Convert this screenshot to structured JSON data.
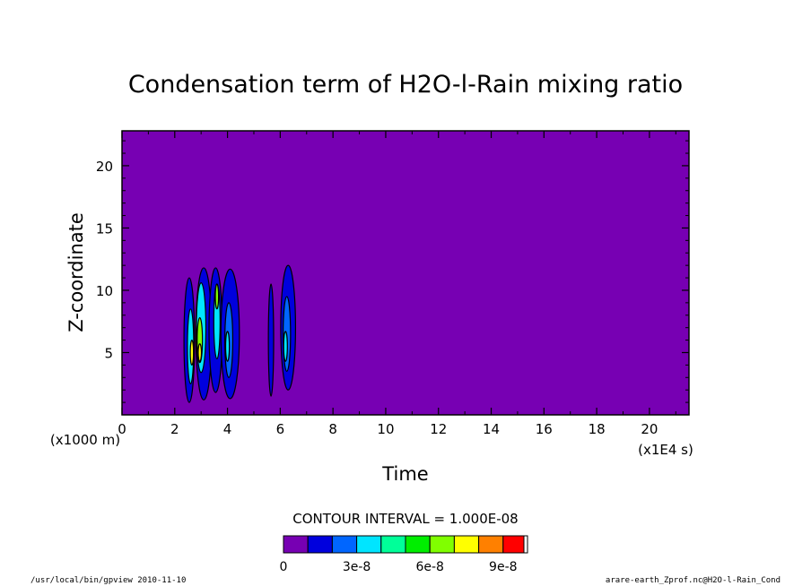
{
  "chart_data": {
    "type": "heatmap",
    "title": "Condensation term of H2O-l-Rain mixing ratio",
    "xlabel": "Time",
    "ylabel": "Z-coordinate",
    "x_unit": "(x1E4 s)",
    "y_unit": "(x1000 m)",
    "xlim": [
      0,
      21.5
    ],
    "ylim": [
      0,
      22.8
    ],
    "xticks": [
      0,
      2,
      4,
      6,
      8,
      10,
      12,
      14,
      16,
      18,
      20
    ],
    "yticks": [
      5,
      10,
      15,
      20
    ],
    "background_color": "#7700b3",
    "contour_interval_label": "CONTOUR INTERVAL = 1.000E-08",
    "colorbar": {
      "levels": [
        0,
        1e-08,
        2e-08,
        3e-08,
        4e-08,
        5e-08,
        6e-08,
        7e-08,
        8e-08,
        9e-08,
        1e-07
      ],
      "colors": [
        "#7700b3",
        "#0000dd",
        "#0066ff",
        "#00e5ff",
        "#00ff99",
        "#00ee00",
        "#80ff00",
        "#ffff00",
        "#ff8000",
        "#ff0000"
      ],
      "tick_labels": [
        {
          "value": 0,
          "label": "0"
        },
        {
          "value": 3e-08,
          "label": "3e-8"
        },
        {
          "value": 6e-08,
          "label": "6e-8"
        },
        {
          "value": 9e-08,
          "label": "9e-8"
        }
      ]
    },
    "regions": [
      {
        "x": 2.55,
        "y": 6.0,
        "rx": 0.2,
        "ry": 5.0,
        "level": 1
      },
      {
        "x": 2.6,
        "y": 5.5,
        "rx": 0.12,
        "ry": 3.0,
        "level": 3
      },
      {
        "x": 2.65,
        "y": 5.0,
        "rx": 0.06,
        "ry": 1.0,
        "level": 7
      },
      {
        "x": 3.1,
        "y": 6.5,
        "rx": 0.3,
        "ry": 5.3,
        "level": 1
      },
      {
        "x": 3.0,
        "y": 7.0,
        "rx": 0.18,
        "ry": 3.6,
        "level": 3
      },
      {
        "x": 2.95,
        "y": 6.0,
        "rx": 0.1,
        "ry": 1.8,
        "level": 6
      },
      {
        "x": 2.95,
        "y": 5.0,
        "rx": 0.06,
        "ry": 0.7,
        "level": 7
      },
      {
        "x": 3.55,
        "y": 6.8,
        "rx": 0.25,
        "ry": 5.0,
        "level": 1
      },
      {
        "x": 3.6,
        "y": 7.5,
        "rx": 0.12,
        "ry": 3.0,
        "level": 3
      },
      {
        "x": 3.6,
        "y": 9.5,
        "rx": 0.06,
        "ry": 1.0,
        "level": 6
      },
      {
        "x": 4.1,
        "y": 6.5,
        "rx": 0.35,
        "ry": 5.2,
        "level": 1
      },
      {
        "x": 4.05,
        "y": 6.0,
        "rx": 0.15,
        "ry": 3.0,
        "level": 2
      },
      {
        "x": 4.0,
        "y": 5.5,
        "rx": 0.07,
        "ry": 1.2,
        "level": 3
      },
      {
        "x": 5.65,
        "y": 6.0,
        "rx": 0.1,
        "ry": 4.5,
        "level": 1
      },
      {
        "x": 6.3,
        "y": 7.0,
        "rx": 0.28,
        "ry": 5.0,
        "level": 1
      },
      {
        "x": 6.25,
        "y": 6.5,
        "rx": 0.14,
        "ry": 3.0,
        "level": 2
      },
      {
        "x": 6.2,
        "y": 5.5,
        "rx": 0.07,
        "ry": 1.2,
        "level": 3
      }
    ]
  },
  "footer": {
    "left": "/usr/local/bin/gpview  2010-11-10",
    "right": "arare-earth_Zprof.nc@H2O-l-Rain_Cond"
  }
}
